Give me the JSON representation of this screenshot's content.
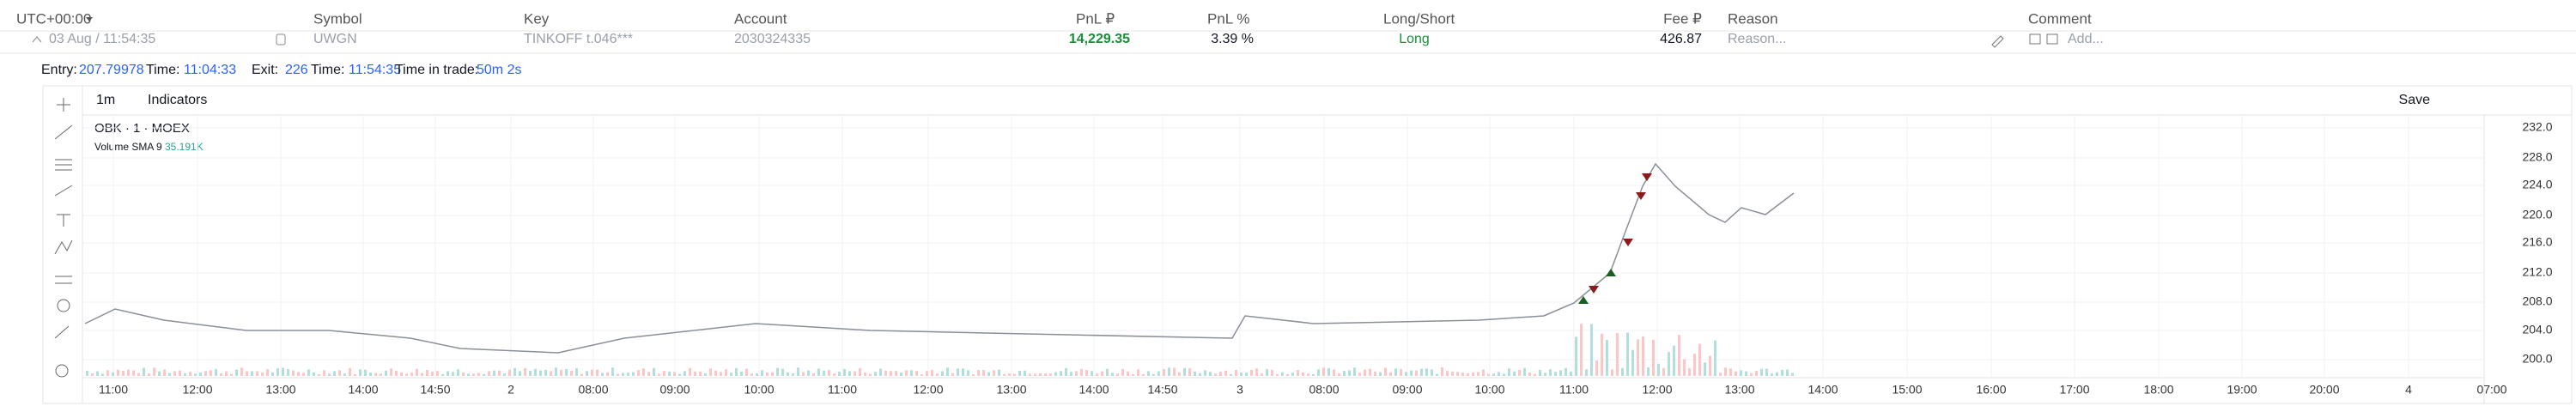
{
  "header": {
    "timezone": "UTC+00:00",
    "columns": [
      "Symbol",
      "Key",
      "Account",
      "PnL ₽",
      "PnL %",
      "Long/Short",
      "Fee ₽",
      "Reason",
      "Comment"
    ]
  },
  "trade": {
    "datetime": "03 Aug / 11:54:35",
    "symbol": "UWGN",
    "key": "TINKOFF t.046***",
    "account": "2030324335",
    "pnl": "14,229.35",
    "pnl_pct": "3.39 %",
    "side": "Long",
    "fee": "426.87",
    "reason": "Reason...",
    "comment": "Add..."
  },
  "details": {
    "entry_label": "Entry:",
    "entry": "207.79978",
    "time_label": "Time:",
    "entry_time": "11:04:33",
    "exit_label": "Exit:",
    "exit": "226",
    "exit_time": "11:54:35",
    "duration_label": "Time in trade:",
    "duration": "50m 2s"
  },
  "toolbar": {
    "interval": "1m",
    "indicators": "Indicators",
    "save": "Save"
  },
  "chart": {
    "symbol": "OBK · 1 · MOEX",
    "indicator": "Volume SMA 9",
    "indicator_value": "35.191K",
    "yticks": [
      "232.0",
      "228.0",
      "224.0",
      "220.0",
      "216.0",
      "212.0",
      "208.0",
      "204.0",
      "200.0"
    ],
    "xticks": [
      "11:00",
      "12:00",
      "13:00",
      "14:00",
      "14:50",
      "2",
      "08:00",
      "09:00",
      "10:00",
      "11:00",
      "12:00",
      "13:00",
      "14:00",
      "14:50",
      "3",
      "08:00",
      "09:00",
      "10:00",
      "11:00",
      "12:00",
      "13:00",
      "14:00",
      "15:00",
      "16:00",
      "17:00",
      "18:00",
      "19:00",
      "20:00",
      "4",
      "07:00"
    ]
  }
}
